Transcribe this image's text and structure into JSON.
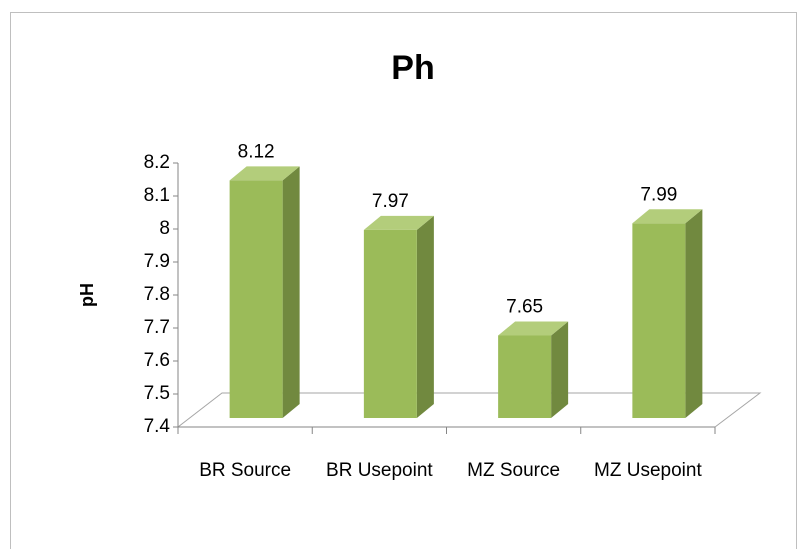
{
  "chart_data": {
    "type": "bar3d",
    "title": "Ph",
    "y_label": "pH",
    "categories": [
      "BR Source",
      "BR Usepoint",
      "MZ Source",
      "MZ Usepoint"
    ],
    "values": [
      8.12,
      7.97,
      7.65,
      7.99
    ],
    "color": "#9bbb59",
    "ylim": [
      7.4,
      8.2
    ],
    "yticks": [
      7.4,
      7.5,
      7.6,
      7.7,
      7.8,
      7.9,
      8,
      8.1,
      8.2
    ]
  }
}
